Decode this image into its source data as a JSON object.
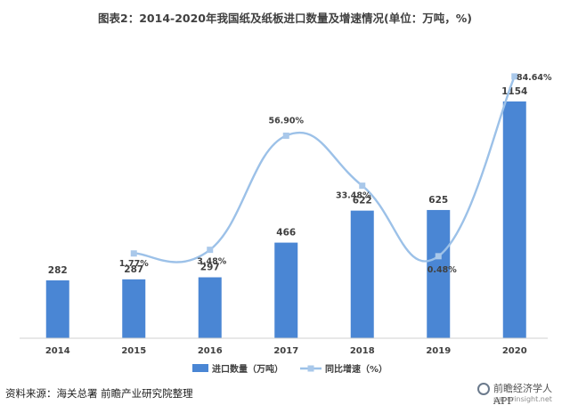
{
  "title": "图表2：2014-2020年我国纸及纸板进口数量及增速情况(单位：万吨，%)",
  "source": "资料来源：海关总署 前瞻产业研究院整理",
  "logo": {
    "text": "前瞻经济学人APP",
    "url_text": "paperinsight.net"
  },
  "colors": {
    "bar": "#4a86d4",
    "line": "#9cc1e8",
    "marker": "#a9c8ea",
    "axis": "#d0d0d0",
    "text": "#404040"
  },
  "chart_data": {
    "type": "bar",
    "categories": [
      "2014",
      "2015",
      "2016",
      "2017",
      "2018",
      "2019",
      "2020"
    ],
    "series": [
      {
        "name": "进口数量（万吨）",
        "type": "bar",
        "values": [
          282,
          287,
          297,
          466,
          622,
          625,
          1154
        ],
        "labels": [
          "282",
          "287",
          "297",
          "466",
          "622",
          "625",
          "1154"
        ]
      },
      {
        "name": "同比增速（%）",
        "type": "line",
        "values": [
          null,
          1.77,
          3.48,
          56.9,
          33.48,
          0.48,
          84.64
        ],
        "labels": [
          "",
          "1.77%",
          "3.48%",
          "56.90%",
          "33.48%",
          "0.48%",
          "84.64%"
        ]
      }
    ],
    "bar_axis_max": 1300,
    "line_axis_range": [
      -25,
      90
    ],
    "grid": false,
    "legend_position": "bottom"
  }
}
